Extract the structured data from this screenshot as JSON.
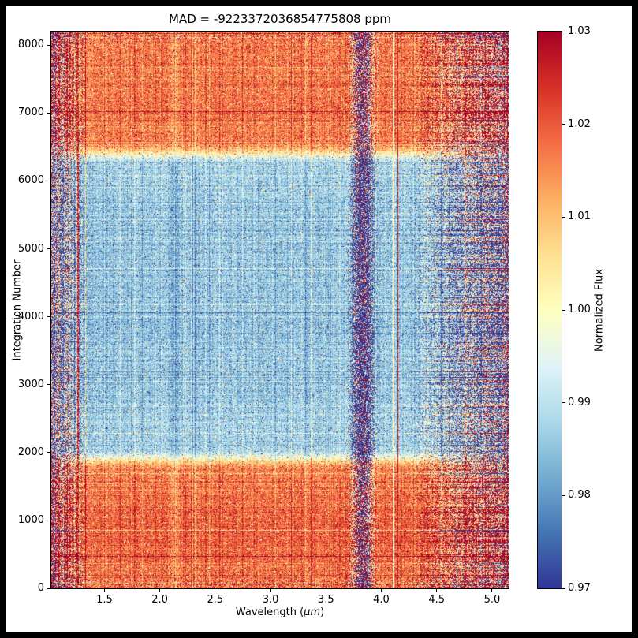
{
  "figure": {
    "frame_color": "#000000",
    "background_color": "#ffffff"
  },
  "chart_data": {
    "type": "heatmap",
    "title": "MAD = -9223372036854775808 ppm",
    "xlabel": "Wavelength (μm)",
    "xlabel_prefix": "Wavelength (",
    "xlabel_unit": "μm",
    "xlabel_suffix": ")",
    "ylabel": "Integration Number",
    "x_range": [
      1.02,
      5.15
    ],
    "y_range": [
      0,
      8200
    ],
    "x_ticks": [
      1.5,
      2.0,
      2.5,
      3.0,
      3.5,
      4.0,
      4.5,
      5.0
    ],
    "x_tick_labels": [
      "1.5",
      "2.0",
      "2.5",
      "3.0",
      "3.5",
      "4.0",
      "4.5",
      "5.0"
    ],
    "y_ticks": [
      0,
      1000,
      2000,
      3000,
      4000,
      5000,
      6000,
      7000,
      8000
    ],
    "y_tick_labels": [
      "0",
      "1000",
      "2000",
      "3000",
      "4000",
      "5000",
      "6000",
      "7000",
      "8000"
    ],
    "grid": false,
    "colorbar": {
      "label": "Normalized Flux",
      "range": [
        0.97,
        1.03
      ],
      "ticks": [
        0.97,
        0.98,
        0.99,
        1.0,
        1.01,
        1.02,
        1.03
      ],
      "tick_labels": [
        "0.97",
        "0.98",
        "0.99",
        "1.00",
        "1.01",
        "1.02",
        "1.03"
      ],
      "colormap": "RdYlBu_r",
      "stops": [
        "#313695",
        "#4575b4",
        "#74add1",
        "#abd9e9",
        "#e0f3f8",
        "#ffffbf",
        "#fee090",
        "#fdae61",
        "#f46d43",
        "#d73027",
        "#a50026"
      ]
    },
    "model": {
      "seed": 20240617,
      "out_flux": 1.016,
      "in_flux": 0.9876,
      "transit": {
        "ingress_center": 1900,
        "egress_center": 6400,
        "ramp": 320,
        "extra_depth": 0.002
      },
      "time_features": [
        {
          "center": 800,
          "sigma": 550,
          "amp": 0.003
        },
        {
          "center": 7400,
          "sigma": 600,
          "amp": 0.0012
        }
      ],
      "noise": {
        "pixel_base": 0.0035,
        "row_base": 0.0011,
        "col_base": 0.0014,
        "left_edge": {
          "start": 1.35,
          "end": 1.02,
          "pixel": 0.02,
          "row": 0.005,
          "col": 0.012
        },
        "right_edge": {
          "start": 4.28,
          "end": 5.15,
          "pixel": 0.017,
          "row": 0.012,
          "col": 0.005
        },
        "band": {
          "center": 3.83,
          "sigma": 0.05,
          "pixel": 0.042,
          "offset": -0.014,
          "col": 0.012
        },
        "time_edge": {
          "scale": 80,
          "amp": 1.6
        }
      },
      "column_features": [
        {
          "center": 1.26,
          "width": 0.014,
          "mode": "set",
          "value": 1.027,
          "jitter": 0.012
        },
        {
          "center": 4.15,
          "width": 0.013,
          "mode": "set",
          "value": 1.028,
          "jitter": 0.005
        },
        {
          "center": 4.11,
          "width": 0.011,
          "mode": "set",
          "value": 1.0,
          "jitter": 0.005
        },
        {
          "center": 2.13,
          "width": 0.1,
          "mode": "offset",
          "value": -0.0035
        },
        {
          "center": 2.32,
          "width": 0.05,
          "mode": "offset",
          "value": -0.002
        },
        {
          "center": 1.68,
          "width": 0.05,
          "mode": "offset",
          "value": -0.0015
        },
        {
          "center": 2.46,
          "width": 0.04,
          "mode": "offset",
          "value": -0.0012
        },
        {
          "center": 3.32,
          "width": 0.07,
          "mode": "offset",
          "value": -0.001
        },
        {
          "center": 4.33,
          "width": 0.07,
          "mode": "offset",
          "value": -0.002
        }
      ]
    }
  }
}
